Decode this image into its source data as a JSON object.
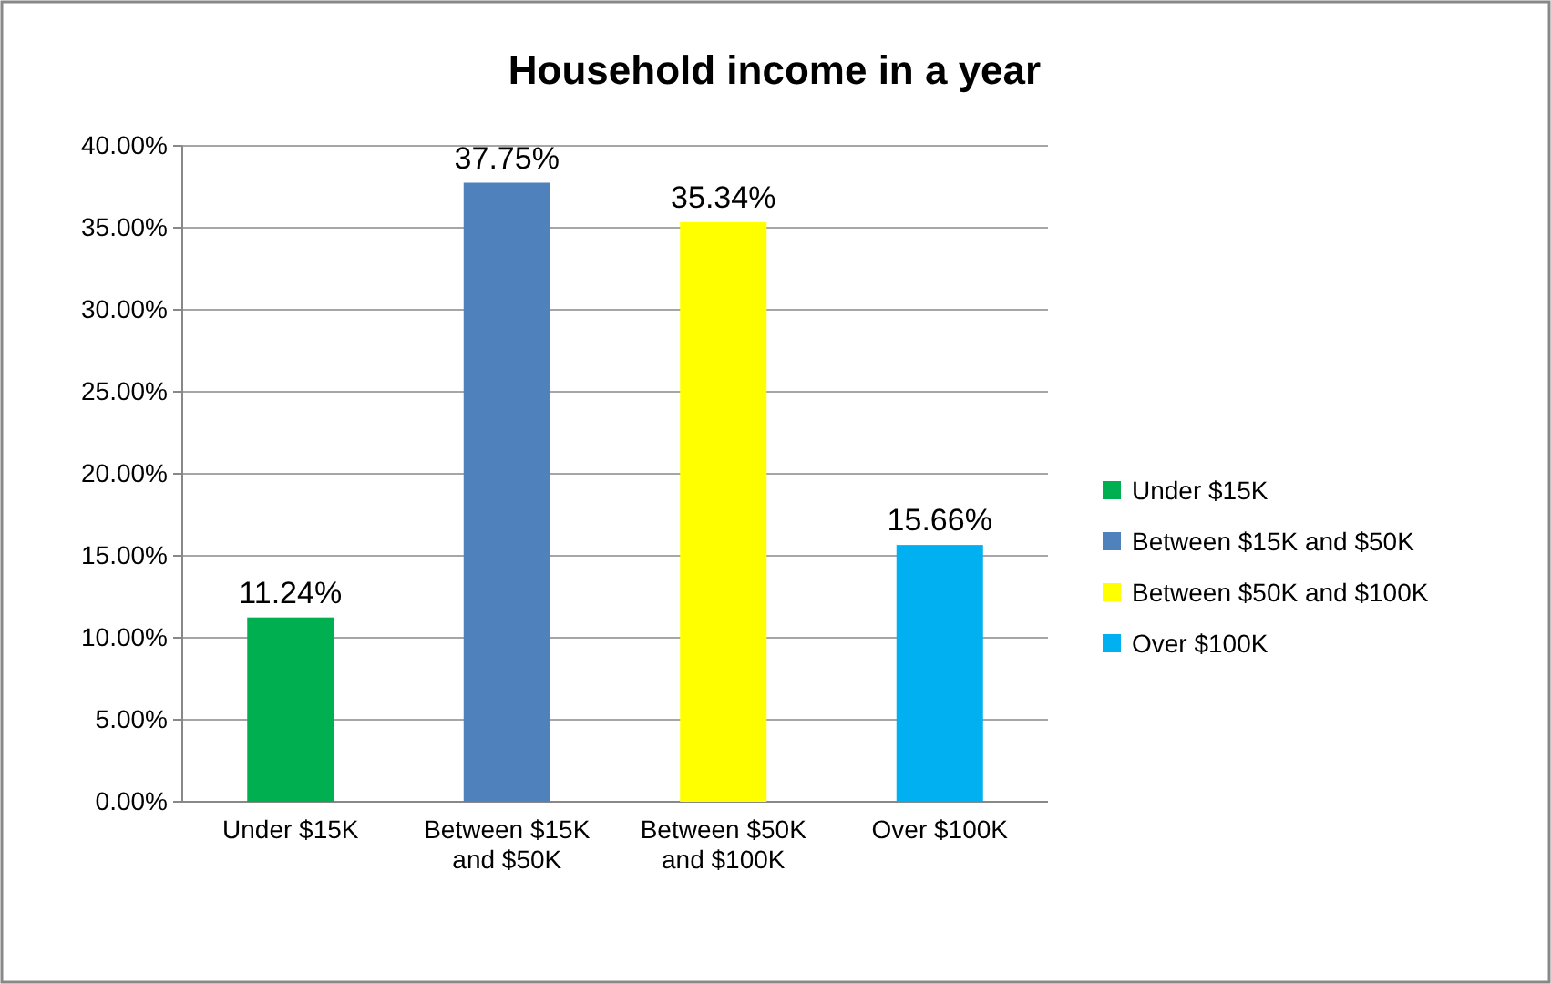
{
  "chart_data": {
    "type": "bar",
    "title": "Household income in a year",
    "categories": [
      "Under $15K",
      "Between $15K and $50K",
      "Between $50K and $100K",
      "Over $100K"
    ],
    "series": [
      {
        "name": "Under $15K",
        "color": "#00b050",
        "values": [
          11.24,
          null,
          null,
          null
        ],
        "value_labels": [
          "11.24%",
          null,
          null,
          null
        ]
      },
      {
        "name": "Between $15K and $50K",
        "color": "#4f81bd",
        "values": [
          null,
          37.75,
          null,
          null
        ],
        "value_labels": [
          null,
          "37.75%",
          null,
          null
        ]
      },
      {
        "name": "Between $50K and $100K",
        "color": "#ffff00",
        "values": [
          null,
          null,
          35.34,
          null
        ],
        "value_labels": [
          null,
          null,
          "35.34%",
          null
        ]
      },
      {
        "name": "Over $100K",
        "color": "#00b0f0",
        "values": [
          null,
          null,
          null,
          15.66
        ],
        "value_labels": [
          null,
          null,
          null,
          "15.66%"
        ]
      }
    ],
    "stacked": true,
    "ylim": [
      0,
      40
    ],
    "yticks": [
      {
        "value": 0,
        "label": "0.00%"
      },
      {
        "value": 5,
        "label": "5.00%"
      },
      {
        "value": 10,
        "label": "10.00%"
      },
      {
        "value": 15,
        "label": "15.00%"
      },
      {
        "value": 20,
        "label": "20.00%"
      },
      {
        "value": 25,
        "label": "25.00%"
      },
      {
        "value": 30,
        "label": "30.00%"
      },
      {
        "value": 35,
        "label": "35.00%"
      },
      {
        "value": 40,
        "label": "40.00%"
      }
    ],
    "grid": "y",
    "legend": "right"
  }
}
